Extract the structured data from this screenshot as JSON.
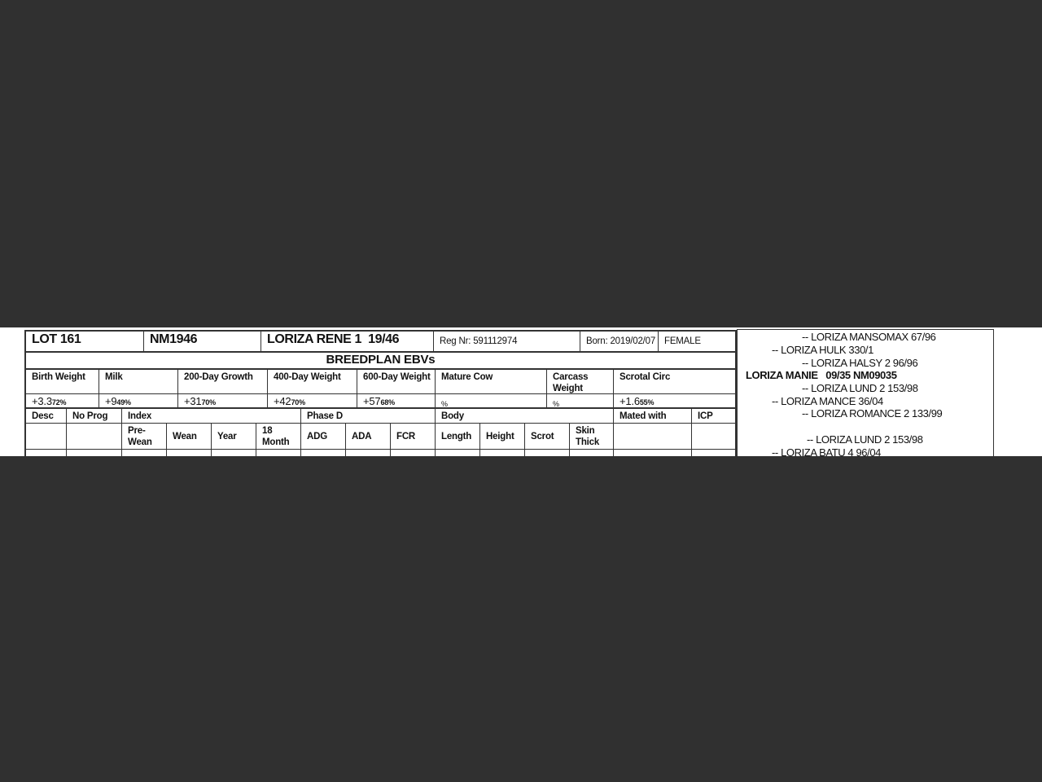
{
  "header": {
    "lot": "LOT 161",
    "id": "NM1946",
    "name": "LORIZA RENE 1  19/46",
    "reg": "Reg Nr: 591112974",
    "born": "Born: 2019/02/07",
    "sex": "FEMALE"
  },
  "ebv_title": "BREEDPLAN EBVs",
  "ebvs": [
    {
      "label": "Birth Weight",
      "value": "+3.3",
      "acc": "72%"
    },
    {
      "label": "Milk",
      "value": "+9",
      "acc": "49%"
    },
    {
      "label": "200-Day Growth",
      "value": "+31",
      "acc": "70%"
    },
    {
      "label": "400-Day Weight",
      "value": "+42",
      "acc": "70%"
    },
    {
      "label": "600-Day Weight",
      "value": "+57",
      "acc": "68%"
    },
    {
      "label": "Mature Cow",
      "value": "",
      "acc": "%"
    },
    {
      "label": "Carcass Weight",
      "value": "",
      "acc": "%"
    },
    {
      "label": "Scrotal Circ",
      "value": "+1.6",
      "acc": "55%"
    }
  ],
  "perf": {
    "groups": [
      "Desc",
      "No Prog",
      "Index",
      "Phase D",
      "Body",
      "Mated with",
      "ICP"
    ],
    "sub": [
      "Pre-\nWean",
      "Wean",
      "Year",
      "18\nMonth",
      "ADG",
      "ADA",
      "FCR",
      "Length",
      "Height",
      "Scrot",
      "Skin\nThick"
    ]
  },
  "pedigree": [
    "-- LORIZA MANSOMAX 67/96",
    "-- LORIZA HULK 330/1",
    "-- LORIZA HALSY 2 96/96",
    "LORIZA MANIE   09/35 NM09035",
    "-- LORIZA LUND 2 153/98",
    "-- LORIZA MANCE 36/04",
    "-- LORIZA ROMANCE 2 133/99",
    "-- LORIZA LUND 2 153/98",
    "-- LORIZA BATU 4 96/04"
  ]
}
